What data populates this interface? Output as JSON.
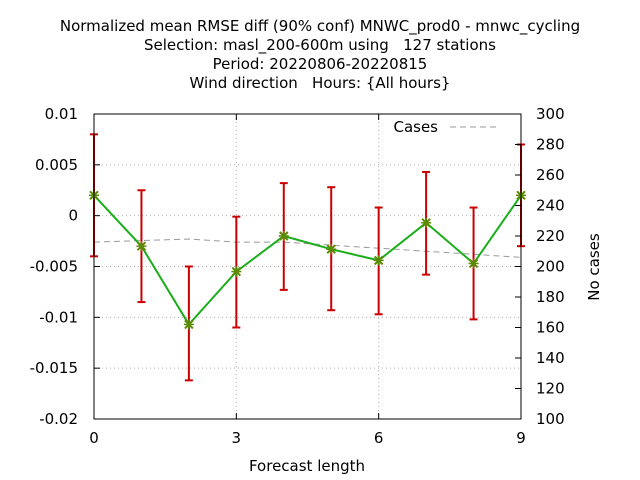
{
  "chart_data": {
    "type": "line",
    "title_lines": [
      "Normalized mean RMSE diff (90% conf) MNWC_prod0 - mnwc_cycling",
      "Selection: masl_200-600m using   127 stations",
      "Period: 20220806-20220815",
      "Wind direction   Hours: {All hours}"
    ],
    "xlabel": "Forecast length",
    "ylabel": "",
    "y2label": "No cases",
    "xlim": [
      0,
      9
    ],
    "ylim": [
      -0.02,
      0.01
    ],
    "y2lim": [
      100,
      300
    ],
    "x_ticks": [
      "0",
      "3",
      "6",
      "9"
    ],
    "y_ticks": [
      "0.01",
      "0.005",
      "0",
      "-0.005",
      "-0.01",
      "-0.015",
      "-0.02"
    ],
    "y2_ticks": [
      "300",
      "280",
      "260",
      "240",
      "220",
      "200",
      "180",
      "160",
      "140",
      "120",
      "100"
    ],
    "grid": true,
    "legend_position": "top-right",
    "colors": {
      "diff_line": "#1aae1a",
      "marker": "#5a8a00",
      "error_bar": "#cc0000",
      "cases_line": "#999999"
    },
    "series": [
      {
        "axis": "y1",
        "x": [
          0,
          1,
          2,
          3,
          4,
          5,
          6,
          7,
          8,
          9
        ],
        "values": [
          0.002,
          -0.003,
          -0.0107,
          -0.0055,
          -0.002,
          -0.0033,
          -0.0044,
          -0.0007,
          -0.0047,
          0.002
        ],
        "err_low": [
          -0.004,
          -0.0085,
          -0.0162,
          -0.011,
          -0.0073,
          -0.0093,
          -0.0097,
          -0.0058,
          -0.0102,
          -0.003
        ],
        "err_high": [
          0.008,
          0.0025,
          -0.005,
          -0.0001,
          0.0032,
          0.0028,
          0.0008,
          0.0043,
          0.0008,
          0.007
        ]
      },
      {
        "name": "Cases",
        "axis": "y2",
        "x": [
          0,
          1,
          2,
          3,
          4,
          5,
          6,
          7,
          8,
          9
        ],
        "values": [
          216,
          217,
          218,
          216,
          216,
          214,
          212,
          210,
          208,
          206
        ]
      }
    ]
  }
}
